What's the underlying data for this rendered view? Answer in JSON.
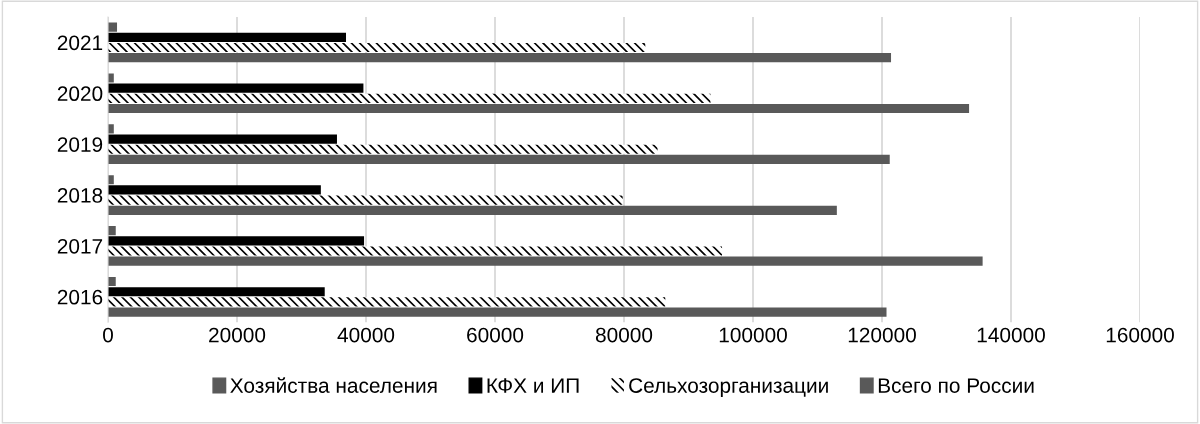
{
  "chart_data": {
    "type": "bar",
    "orientation": "horizontal",
    "categories": [
      "2021",
      "2020",
      "2019",
      "2018",
      "2017",
      "2016"
    ],
    "series": [
      {
        "name": "Хозяйства населения",
        "color": "#595959",
        "values": [
          1400,
          900,
          900,
          900,
          1200,
          1200
        ]
      },
      {
        "name": "КФХ и ИП",
        "color": "#000000",
        "values": [
          36900,
          39600,
          35500,
          33000,
          39700,
          33600
        ]
      },
      {
        "name": "Сельхозорганизации",
        "color": "#000000",
        "values": [
          83300,
          93400,
          85200,
          79800,
          95200,
          86400
        ]
      },
      {
        "name": "Всего по России",
        "color": "#595959",
        "values": [
          121400,
          133500,
          121200,
          113000,
          135600,
          120700
        ]
      }
    ],
    "xlim": [
      0,
      160000
    ],
    "xticks": [
      0,
      20000,
      40000,
      60000,
      80000,
      100000,
      120000,
      140000,
      160000
    ],
    "grid": "x",
    "legend": "bottom"
  }
}
